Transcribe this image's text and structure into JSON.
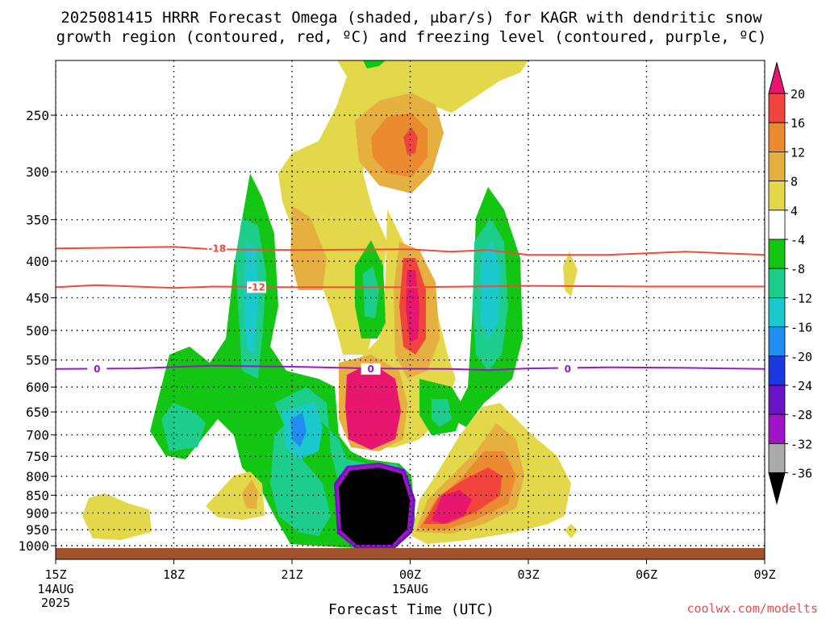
{
  "chart_data": {
    "type": "heatmap",
    "title_lines": [
      "2025081415 HRRR Forecast Omega (shaded, μbar/s) for KAGR with dendritic snow",
      "growth region (contoured, red, ºC) and freezing level (contoured, purple, ºC)"
    ],
    "xlabel": "Forecast Time (UTC)",
    "x_ticks": [
      {
        "value": 0,
        "label": "15Z",
        "sub": [
          "14AUG",
          "2025"
        ]
      },
      {
        "value": 3,
        "label": "18Z",
        "sub": []
      },
      {
        "value": 6,
        "label": "21Z",
        "sub": []
      },
      {
        "value": 9,
        "label": "00Z",
        "sub": [
          "15AUG"
        ]
      },
      {
        "value": 12,
        "label": "03Z",
        "sub": []
      },
      {
        "value": 15,
        "label": "06Z",
        "sub": []
      },
      {
        "value": 18,
        "label": "09Z",
        "sub": []
      }
    ],
    "xlim": [
      0,
      18
    ],
    "y_ticks": [
      250,
      300,
      350,
      400,
      450,
      500,
      550,
      600,
      650,
      700,
      750,
      800,
      850,
      900,
      950,
      1000
    ],
    "ylim": [
      200,
      1020
    ],
    "y_scale": "log-pressure (inverted)",
    "grid": true,
    "colorbar": {
      "values": [
        20,
        16,
        12,
        8,
        4,
        -4,
        -8,
        -12,
        -16,
        -20,
        -24,
        -28,
        -32,
        -36
      ],
      "colors": [
        "#e8166e",
        "#f0443c",
        "#ec8a30",
        "#e6b040",
        "#e2d84a",
        "#ffffff",
        "#13c613",
        "#1dcd8c",
        "#1bc8cc",
        "#1f8ef0",
        "#1a3ae0",
        "#6a14c8",
        "#a014c8",
        "#aaaaaa",
        "#000000"
      ]
    },
    "contours": [
      {
        "name": "dendritic growth",
        "label": "-18",
        "color": "#ef4b3c",
        "points": [
          [
            0,
            384
          ],
          [
            3,
            382
          ],
          [
            4,
            385
          ],
          [
            6,
            386
          ],
          [
            9,
            385
          ],
          [
            10,
            388
          ],
          [
            11,
            386
          ],
          [
            12,
            392
          ],
          [
            14,
            392
          ],
          [
            15,
            390
          ],
          [
            16,
            388
          ],
          [
            18,
            392
          ]
        ]
      },
      {
        "name": "dendritic growth",
        "label": "-12",
        "color": "#ef4b3c",
        "points": [
          [
            0,
            435
          ],
          [
            1,
            432
          ],
          [
            3,
            436
          ],
          [
            4,
            434
          ],
          [
            6,
            435
          ],
          [
            9,
            435
          ],
          [
            12,
            433
          ],
          [
            15,
            434
          ],
          [
            18,
            434
          ]
        ]
      },
      {
        "name": "freezing level",
        "label": "0",
        "color": "#9a18c8",
        "points": [
          [
            0,
            566
          ],
          [
            2,
            565
          ],
          [
            4,
            560
          ],
          [
            6,
            562
          ],
          [
            8,
            565
          ],
          [
            10,
            566
          ],
          [
            11,
            568
          ],
          [
            12,
            565
          ],
          [
            14,
            563
          ],
          [
            16,
            564
          ],
          [
            18,
            566
          ]
        ]
      }
    ],
    "contour_labels": [
      {
        "text": "-18",
        "x": 4.1,
        "p": 384,
        "color": "#ef4b3c"
      },
      {
        "text": "-12",
        "x": 5.1,
        "p": 435,
        "color": "#ef4b3c"
      },
      {
        "text": "0",
        "x": 1.05,
        "p": 566,
        "color": "#9a18c8"
      },
      {
        "text": "0",
        "x": 8.0,
        "p": 566,
        "color": "#9a18c8"
      },
      {
        "text": "0",
        "x": 13.0,
        "p": 566,
        "color": "#9a18c8"
      }
    ]
  },
  "credit": "coolwx.com/modelts"
}
